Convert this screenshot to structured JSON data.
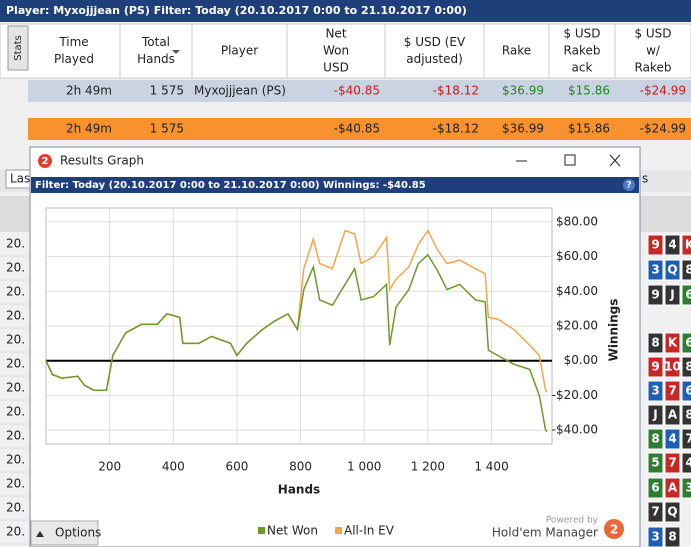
{
  "header": {
    "text": "Player: Myxojjjean (PS)   Filter: Today (20.10.2017 0:00 to 21.10.2017 0:00)"
  },
  "table": {
    "stats_tab": "Stats",
    "columns": [
      [
        "Time",
        "Played"
      ],
      [
        "Total",
        "Hands"
      ],
      [
        "Player"
      ],
      [
        "Net",
        "Won",
        "USD"
      ],
      [
        "$ USD (EV",
        "adjusted)"
      ],
      [
        "Rake"
      ],
      [
        "$ USD",
        "Rakeb",
        "ack"
      ],
      [
        "$ USD",
        "w/",
        "Rakeb"
      ]
    ],
    "rows": [
      [
        "2h 49m",
        "1 575",
        "Myxojjjean (PS)",
        "-$40.85",
        "-$18.12",
        "$36.99",
        "$15.86",
        "-$24.99"
      ],
      [
        "2h 49m",
        "1 575",
        "",
        "-$40.85",
        "-$18.12",
        "$36.99",
        "$15.86",
        "-$24.99"
      ]
    ]
  },
  "background": {
    "dropdown": "Las",
    "right_text": "s",
    "dates": [
      "20.",
      "20.",
      "20.",
      "20.",
      "20.",
      "20.",
      "20.",
      "20.",
      "20.",
      "20.",
      "20.",
      "20.",
      "20."
    ],
    "cards": [
      [
        [
          "9",
          "#c62828"
        ],
        [
          "4",
          "#333333"
        ],
        [
          "K",
          "#c62828"
        ]
      ],
      [
        [
          "3",
          "#1e5fb4"
        ],
        [
          "Q",
          "#1e5fb4"
        ],
        [
          "8",
          "#333333"
        ]
      ],
      [
        [
          "9",
          "#333333"
        ],
        [
          "J",
          "#333333"
        ],
        [
          "6",
          "#2e7d32"
        ]
      ],
      [
        [
          "8",
          "#333333"
        ],
        [
          "K",
          "#c62828"
        ],
        [
          "6",
          "#2e7d32"
        ]
      ],
      [
        [
          "9",
          "#c62828"
        ],
        [
          "10",
          "#c62828"
        ],
        [
          "8",
          "#333333"
        ]
      ],
      [
        [
          "3",
          "#1e5fb4"
        ],
        [
          "7",
          "#c62828"
        ],
        [
          "6",
          "#1e5fb4"
        ]
      ],
      [
        [
          "J",
          "#333333"
        ],
        [
          "A",
          "#333333"
        ],
        [
          "8",
          "#333333"
        ]
      ],
      [
        [
          "8",
          "#2e7d32"
        ],
        [
          "4",
          "#1e5fb4"
        ],
        [
          "7",
          "#333333"
        ]
      ],
      [
        [
          "5",
          "#2e7d32"
        ],
        [
          "7",
          "#c62828"
        ],
        [
          "4",
          "#333333"
        ]
      ],
      [
        [
          "6",
          "#2e7d32"
        ],
        [
          "A",
          "#c62828"
        ],
        [
          "3",
          "#2e7d32"
        ]
      ],
      [
        [
          "7",
          "#333333"
        ],
        [
          "Q",
          "#333333"
        ]
      ],
      [
        [
          "3",
          "#1e5fb4"
        ],
        [
          "8",
          "#333333"
        ]
      ]
    ]
  },
  "window": {
    "icon_text": "2",
    "title": "Results Graph",
    "filter": "Filter: Today (20.10.2017 0:00 to 21.10.2017 0:00)  Winnings: -$40.85",
    "help": "?",
    "options_button": "Options",
    "powered_by": "Powered by",
    "brand": "Hold'em Manager",
    "brand_icon": "2"
  },
  "chart_data": {
    "type": "line",
    "x_label": "Hands",
    "y_label": "Winnings",
    "x": [
      0,
      20,
      50,
      100,
      120,
      150,
      190,
      210,
      250,
      300,
      350,
      380,
      420,
      430,
      480,
      520,
      580,
      600,
      630,
      680,
      720,
      760,
      790,
      810,
      840,
      860,
      900,
      940,
      970,
      990,
      1030,
      1070,
      1080,
      1100,
      1140,
      1170,
      1200,
      1230,
      1260,
      1300,
      1350,
      1380,
      1390,
      1420,
      1470,
      1520,
      1550,
      1570,
      1575
    ],
    "series": [
      {
        "name": "Net Won",
        "color": "#6b9a2c",
        "values": [
          0,
          -8,
          -10,
          -9,
          -14,
          -17,
          -17,
          3,
          16,
          21,
          21,
          27,
          25,
          10,
          10,
          14,
          10,
          3,
          10,
          18,
          23,
          27,
          18,
          41,
          54,
          35,
          32,
          44,
          53,
          35,
          37,
          44,
          9,
          31,
          41,
          56,
          61,
          52,
          41,
          44,
          35,
          34,
          6,
          3,
          -2,
          -5,
          -20,
          -40,
          -40.85
        ]
      },
      {
        "name": "All-In EV",
        "color": "#f5a54a",
        "values": [
          0,
          -8,
          -10,
          -9,
          -14,
          -17,
          -17,
          3,
          16,
          21,
          21,
          27,
          25,
          10,
          10,
          14,
          10,
          3,
          10,
          18,
          23,
          27,
          18,
          53,
          70,
          56,
          53,
          75,
          73,
          56,
          60,
          71,
          41,
          47,
          54,
          67,
          75,
          64,
          56,
          58,
          53,
          50,
          25,
          24,
          18,
          9,
          3,
          -17,
          -18.12
        ]
      }
    ],
    "xlim": [
      0,
      1590
    ],
    "ylim": [
      -48,
      88
    ],
    "xticks": [
      200,
      400,
      600,
      800,
      {
        "value": 1000,
        "label": "1 000"
      },
      {
        "value": 1200,
        "label": "1 200"
      },
      {
        "value": 1400,
        "label": "1 400"
      }
    ],
    "yticks": [
      {
        "value": 80,
        "label": "$80.00"
      },
      {
        "value": 60,
        "label": "$60.00"
      },
      {
        "value": 40,
        "label": "$40.00"
      },
      {
        "value": 20,
        "label": "$20.00"
      },
      {
        "value": 0,
        "label": "$0.00"
      },
      {
        "value": -20,
        "label": "-$20.00"
      },
      {
        "value": -40,
        "label": "-$40.00"
      }
    ],
    "grid": true
  }
}
